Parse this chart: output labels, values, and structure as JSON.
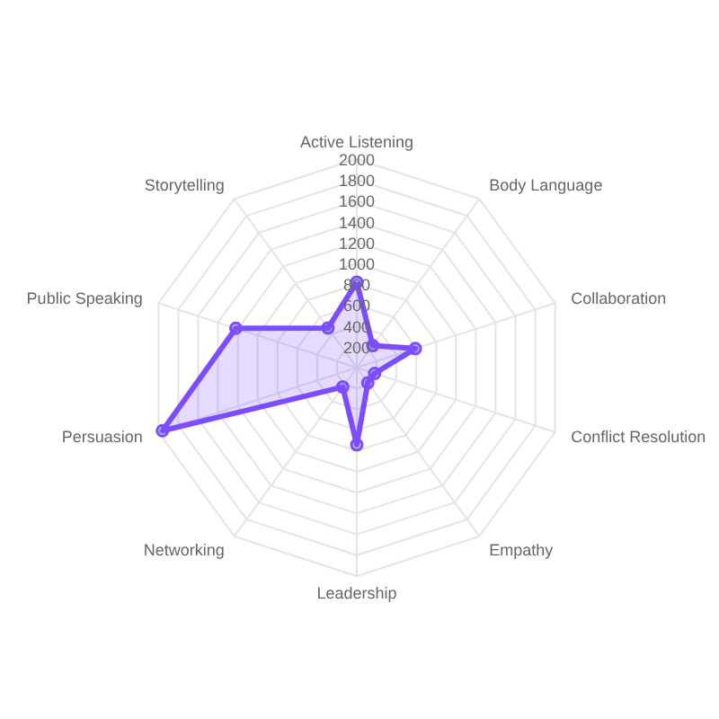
{
  "chart_data": {
    "type": "radar",
    "categories": [
      "Active Listening",
      "Body Language",
      "Collaboration",
      "Conflict Resolution",
      "Empathy",
      "Leadership",
      "Networking",
      "Persuasion",
      "Public Speaking",
      "Storytelling"
    ],
    "series": [
      {
        "color": "#7c4dff",
        "values": [
          820,
          260,
          590,
          180,
          180,
          740,
          230,
          1960,
          1220,
          470
        ]
      }
    ],
    "ylim": [
      0,
      2000
    ],
    "yticks": [
      200,
      400,
      600,
      800,
      1000,
      1200,
      1400,
      1600,
      1800,
      2000
    ],
    "grid": true,
    "marker": "circle",
    "line_style": "solid"
  }
}
